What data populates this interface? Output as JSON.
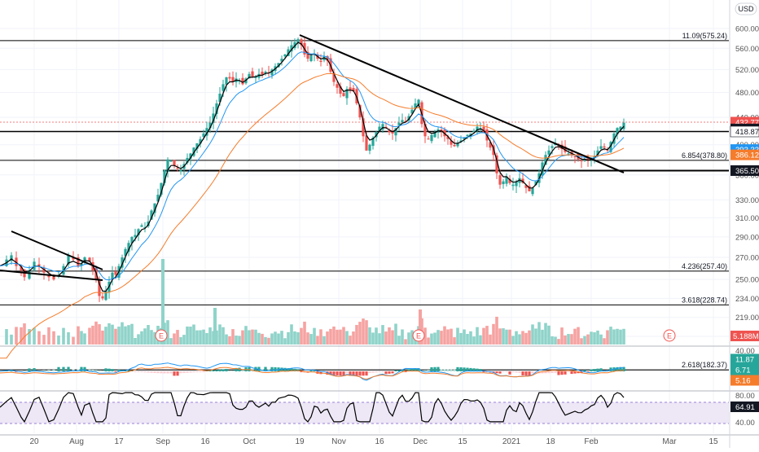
{
  "currency_label": "USD",
  "colors": {
    "up": "#26a69a",
    "down": "#ef5350",
    "ema_fast": "#000000",
    "ema_mid": "#2196f3",
    "ema_slow": "#f57c2b",
    "macd_line": "#2196f3",
    "signal_line": "#f57c2b",
    "rsi_line": "#000000",
    "rsi_band": "#ede7f6",
    "level_line": "#000000",
    "grid": "#f0f3fa",
    "price_axis_text": "#555555"
  },
  "price_labels": [
    {
      "label": "432.77",
      "value": 432.77,
      "color": "#ef5350"
    },
    {
      "label": "422.59",
      "value": 422.59,
      "color": "#131722"
    },
    {
      "label": "418.87",
      "value": 418.87,
      "color": "#ffffff",
      "text_color": "#131722"
    },
    {
      "label": "393.33",
      "value": 393.33,
      "color": "#2196f3"
    },
    {
      "label": "386.12",
      "value": 386.12,
      "color": "#f57c2b"
    },
    {
      "label": "365.50",
      "value": 365.5,
      "color": "#131722"
    }
  ],
  "fib_labels": [
    {
      "label": "11.09(575.24)",
      "value": 575.24
    },
    {
      "label": "6.854(378.80)",
      "value": 378.8
    },
    {
      "label": "4.236(257.40)",
      "value": 257.4
    },
    {
      "label": "3.618(228.74)",
      "value": 228.74
    },
    {
      "label": "2.618(182.37)",
      "value": 182.37
    }
  ],
  "volume_badge": "5.188M",
  "macd_badges": [
    {
      "label": "11.87",
      "color": "#26a69a"
    },
    {
      "label": "6.71",
      "color": "#26a69a"
    },
    {
      "label": "5.16",
      "color": "#f57c2b"
    }
  ],
  "rsi_badge": "64.91",
  "earnings_marker": "E",
  "chart_data": {
    "type": "candlestick",
    "y_scale": "log",
    "price_ticks": [
      600,
      560,
      520,
      480,
      440,
      400,
      360,
      330,
      310,
      290,
      270,
      250,
      234,
      219,
      205
    ],
    "macd_ticks": [
      "40.00"
    ],
    "rsi_ticks": [
      "80.00",
      "40.00"
    ],
    "x_ticks": [
      "20",
      "Aug",
      "17",
      "Sep",
      "16",
      "Oct",
      "19",
      "Nov",
      "16",
      "Dec",
      "15",
      "2021",
      "18",
      "Feb",
      "Mar",
      "15"
    ],
    "ylim": [
      182,
      615
    ],
    "levels": [
      575.24,
      418.87,
      378.8,
      365.5,
      257.4,
      228.74,
      182.37
    ],
    "rsi_band": [
      30,
      70
    ],
    "rsi_value": 64.91,
    "macd_values": {
      "macd": 11.87,
      "signal": 6.71,
      "histogram": 5.16
    },
    "volume_last": "5.188M",
    "close_path": [
      [
        0,
        262
      ],
      [
        8,
        268
      ],
      [
        14,
        272
      ],
      [
        20,
        262
      ],
      [
        26,
        258
      ],
      [
        30,
        252
      ],
      [
        36,
        258
      ],
      [
        42,
        266
      ],
      [
        48,
        262
      ],
      [
        54,
        256
      ],
      [
        60,
        252
      ],
      [
        66,
        250
      ],
      [
        72,
        254
      ],
      [
        78,
        262
      ],
      [
        84,
        272
      ],
      [
        90,
        268
      ],
      [
        96,
        262
      ],
      [
        100,
        264
      ],
      [
        104,
        270
      ],
      [
        110,
        266
      ],
      [
        114,
        258
      ],
      [
        118,
        250
      ],
      [
        122,
        236
      ],
      [
        126,
        234
      ],
      [
        130,
        240
      ],
      [
        134,
        248
      ],
      [
        138,
        256
      ],
      [
        142,
        254
      ],
      [
        146,
        262
      ],
      [
        150,
        270
      ],
      [
        154,
        278
      ],
      [
        158,
        284
      ],
      [
        162,
        290
      ],
      [
        166,
        292
      ],
      [
        170,
        298
      ],
      [
        174,
        302
      ],
      [
        178,
        300
      ],
      [
        182,
        306
      ],
      [
        186,
        318
      ],
      [
        190,
        326
      ],
      [
        194,
        336
      ],
      [
        198,
        350
      ],
      [
        202,
        366
      ],
      [
        206,
        380
      ],
      [
        210,
        378
      ],
      [
        214,
        372
      ],
      [
        218,
        368
      ],
      [
        222,
        366
      ],
      [
        226,
        374
      ],
      [
        230,
        382
      ],
      [
        234,
        388
      ],
      [
        238,
        396
      ],
      [
        242,
        402
      ],
      [
        246,
        408
      ],
      [
        250,
        416
      ],
      [
        254,
        424
      ],
      [
        258,
        432
      ],
      [
        262,
        446
      ],
      [
        266,
        462
      ],
      [
        270,
        478
      ],
      [
        274,
        494
      ],
      [
        278,
        506
      ],
      [
        282,
        504
      ],
      [
        286,
        498
      ],
      [
        290,
        504
      ],
      [
        294,
        500
      ],
      [
        298,
        494
      ],
      [
        302,
        504
      ],
      [
        306,
        512
      ],
      [
        310,
        506
      ],
      [
        314,
        508
      ],
      [
        318,
        512
      ],
      [
        322,
        510
      ],
      [
        326,
        516
      ],
      [
        330,
        514
      ],
      [
        334,
        520
      ],
      [
        338,
        526
      ],
      [
        342,
        532
      ],
      [
        346,
        540
      ],
      [
        350,
        548
      ],
      [
        354,
        558
      ],
      [
        358,
        566
      ],
      [
        362,
        572
      ],
      [
        366,
        578
      ],
      [
        370,
        566
      ],
      [
        374,
        548
      ],
      [
        378,
        540
      ],
      [
        382,
        546
      ],
      [
        386,
        550
      ],
      [
        390,
        540
      ],
      [
        394,
        534
      ],
      [
        398,
        544
      ],
      [
        402,
        536
      ],
      [
        406,
        516
      ],
      [
        410,
        498
      ],
      [
        414,
        488
      ],
      [
        418,
        478
      ],
      [
        422,
        474
      ],
      [
        426,
        486
      ],
      [
        430,
        484
      ],
      [
        434,
        482
      ],
      [
        438,
        462
      ],
      [
        442,
        440
      ],
      [
        446,
        412
      ],
      [
        450,
        392
      ],
      [
        454,
        400
      ],
      [
        458,
        410
      ],
      [
        462,
        418
      ],
      [
        466,
        426
      ],
      [
        470,
        430
      ],
      [
        474,
        424
      ],
      [
        478,
        418
      ],
      [
        482,
        416
      ],
      [
        486,
        424
      ],
      [
        490,
        432
      ],
      [
        494,
        436
      ],
      [
        498,
        434
      ],
      [
        502,
        442
      ],
      [
        506,
        452
      ],
      [
        510,
        462
      ],
      [
        514,
        468
      ],
      [
        518,
        430
      ],
      [
        522,
        412
      ],
      [
        526,
        408
      ],
      [
        530,
        414
      ],
      [
        534,
        418
      ],
      [
        538,
        422
      ],
      [
        542,
        420
      ],
      [
        546,
        412
      ],
      [
        550,
        408
      ],
      [
        554,
        400
      ],
      [
        558,
        398
      ],
      [
        562,
        402
      ],
      [
        566,
        406
      ],
      [
        570,
        410
      ],
      [
        574,
        414
      ],
      [
        578,
        416
      ],
      [
        582,
        420
      ],
      [
        586,
        426
      ],
      [
        590,
        424
      ],
      [
        594,
        418
      ],
      [
        598,
        406
      ],
      [
        602,
        396
      ],
      [
        606,
        386
      ],
      [
        610,
        362
      ],
      [
        614,
        348
      ],
      [
        618,
        352
      ],
      [
        622,
        358
      ],
      [
        626,
        350
      ],
      [
        630,
        348
      ],
      [
        634,
        352
      ],
      [
        638,
        356
      ],
      [
        642,
        350
      ],
      [
        646,
        344
      ],
      [
        650,
        340
      ],
      [
        654,
        344
      ],
      [
        658,
        352
      ],
      [
        662,
        362
      ],
      [
        666,
        376
      ],
      [
        670,
        386
      ],
      [
        674,
        392
      ],
      [
        678,
        398
      ],
      [
        682,
        402
      ],
      [
        686,
        398
      ],
      [
        690,
        394
      ],
      [
        694,
        390
      ],
      [
        698,
        388
      ],
      [
        702,
        386
      ],
      [
        706,
        384
      ],
      [
        710,
        380
      ],
      [
        714,
        378
      ],
      [
        718,
        380
      ],
      [
        722,
        378
      ],
      [
        726,
        380
      ],
      [
        730,
        384
      ],
      [
        734,
        392
      ],
      [
        738,
        398
      ],
      [
        742,
        396
      ],
      [
        746,
        392
      ],
      [
        750,
        404
      ],
      [
        754,
        416
      ],
      [
        758,
        424
      ],
      [
        762,
        426
      ],
      [
        766,
        432
      ]
    ]
  }
}
